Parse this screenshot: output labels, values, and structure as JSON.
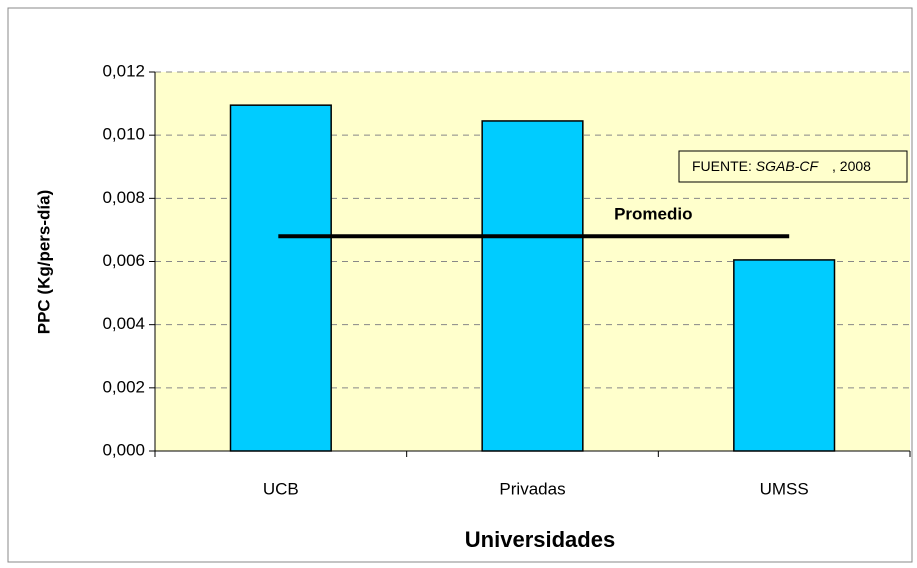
{
  "chart_data": {
    "type": "bar",
    "y_label": "PPC (Kg/pers-día)",
    "x_label": "Universidades",
    "categories": [
      "UCB",
      "Privadas",
      "UMSS"
    ],
    "values": [
      0.01095,
      0.01045,
      0.00605
    ],
    "color": "#00ccff",
    "ylim": [
      0,
      0.012
    ],
    "yticks": [
      {
        "value": 0,
        "label": "0,000"
      },
      {
        "value": 0.002,
        "label": "0,002"
      },
      {
        "value": 0.004,
        "label": "0,004"
      },
      {
        "value": 0.006,
        "label": "0,006"
      },
      {
        "value": 0.008,
        "label": "0,008"
      },
      {
        "value": 0.01,
        "label": "0,010"
      },
      {
        "value": 0.012,
        "label": "0,012"
      }
    ],
    "grid": true,
    "average": {
      "label": "Promedio",
      "value": 0.0068
    },
    "source": {
      "prefix": "FUENTE:",
      "name": "SGAB-CF",
      "suffix": ", 2008"
    }
  }
}
